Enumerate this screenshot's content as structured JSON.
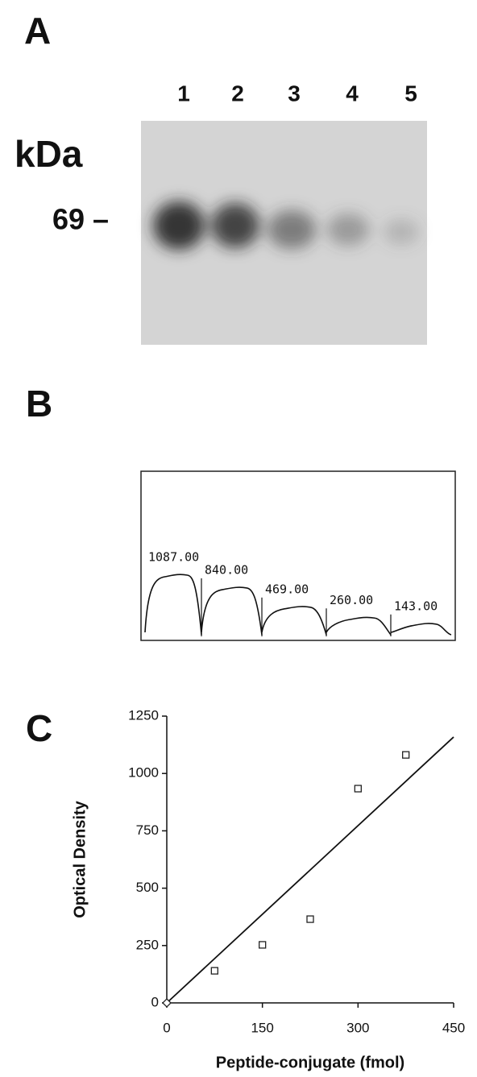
{
  "panel_a": {
    "label": "A",
    "lanes": [
      "1",
      "2",
      "3",
      "4",
      "5"
    ],
    "unit": "kDa",
    "marker": "69 –"
  },
  "panel_b": {
    "label": "B",
    "peaks": {
      "values": [
        1087,
        840,
        469,
        260,
        143
      ],
      "value_labels": [
        "1087.00",
        "840.00",
        "469.00",
        "260.00",
        "143.00"
      ]
    }
  },
  "chart_data": {
    "type": "scatter",
    "panel_label": "C",
    "x_label": "Peptide-conjugate (fmol)",
    "y_label": "Optical Density",
    "x": [
      0,
      75,
      150,
      225,
      300,
      375
    ],
    "series": [
      {
        "color": "#222222",
        "values": [
          0,
          140,
          253,
          365,
          934,
          1081
        ]
      }
    ],
    "fit_line": {
      "x": [
        0,
        450
      ],
      "y": [
        0,
        1159
      ]
    },
    "xlim": [
      0,
      450
    ],
    "xticks": [
      0,
      150,
      300,
      450
    ],
    "ylim": [
      0,
      1250
    ],
    "yticks": [
      0,
      250,
      500,
      750,
      1000,
      1250
    ]
  }
}
